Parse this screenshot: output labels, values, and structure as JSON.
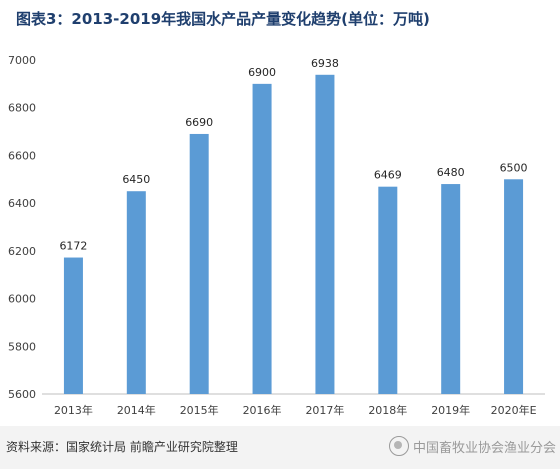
{
  "title": "图表3：2013-2019年我国水产品产量变化趋势(单位：万吨)",
  "source": "资料来源：国家统计局 前瞻产业研究院整理",
  "watermark": "中国畜牧业协会渔业分会",
  "chart_data": {
    "type": "bar",
    "categories": [
      "2013年",
      "2014年",
      "2015年",
      "2016年",
      "2017年",
      "2018年",
      "2019年",
      "2020年E"
    ],
    "values": [
      6172,
      6450,
      6690,
      6900,
      6938,
      6469,
      6480,
      6500
    ],
    "title": "",
    "xlabel": "",
    "ylabel": "",
    "ylim": [
      5600,
      7000
    ],
    "yticks": [
      5600,
      5800,
      6000,
      6200,
      6400,
      6600,
      6800,
      7000
    ],
    "data_labels": true,
    "grid": false,
    "legend": "none",
    "bar_color": "#5b9bd5"
  }
}
